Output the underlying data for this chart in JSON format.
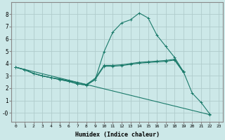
{
  "background_color": "#cce8e8",
  "grid_color": "#b0cccc",
  "line_color": "#1a7a6a",
  "xlabel": "Humidex (Indice chaleur)",
  "xlim": [
    -0.5,
    23.5
  ],
  "ylim": [
    -0.7,
    9.0
  ],
  "yticks": [
    0,
    1,
    2,
    3,
    4,
    5,
    6,
    7,
    8
  ],
  "ytick_labels": [
    "-0",
    "1",
    "2",
    "3",
    "4",
    "5",
    "6",
    "7",
    "8"
  ],
  "xticks": [
    0,
    1,
    2,
    3,
    4,
    5,
    6,
    7,
    8,
    9,
    10,
    11,
    12,
    13,
    14,
    15,
    16,
    17,
    18,
    19,
    20,
    21,
    22,
    23
  ],
  "series": [
    {
      "x": [
        0,
        1,
        2,
        3,
        4,
        5,
        6,
        7,
        8,
        9,
        10,
        11,
        12,
        13,
        14,
        15,
        16,
        17,
        18,
        19
      ],
      "y": [
        3.7,
        3.5,
        3.2,
        3.0,
        2.85,
        2.75,
        2.6,
        2.45,
        2.3,
        2.8,
        3.85,
        3.85,
        3.9,
        4.0,
        4.1,
        4.15,
        4.2,
        4.25,
        4.35,
        3.35
      ]
    },
    {
      "x": [
        0,
        1,
        2,
        3,
        4,
        5,
        6,
        7,
        8,
        9,
        10,
        11,
        12,
        13,
        14,
        15,
        16,
        17,
        18,
        19
      ],
      "y": [
        3.7,
        3.5,
        3.2,
        3.0,
        2.85,
        2.7,
        2.55,
        2.35,
        2.25,
        2.7,
        3.78,
        3.78,
        3.83,
        3.93,
        4.03,
        4.08,
        4.13,
        4.18,
        4.28,
        3.28
      ]
    },
    {
      "x": [
        0,
        1,
        2,
        3,
        4,
        5,
        6,
        7,
        8,
        9,
        10,
        11,
        12,
        13,
        14,
        15,
        16,
        17,
        18,
        19,
        20,
        21,
        22
      ],
      "y": [
        3.7,
        3.5,
        3.2,
        3.0,
        2.85,
        2.7,
        2.55,
        2.35,
        2.25,
        2.7,
        4.95,
        6.55,
        7.3,
        7.55,
        8.1,
        7.7,
        6.3,
        5.4,
        4.5,
        3.35,
        1.6,
        0.85,
        -0.1
      ]
    },
    {
      "x": [
        0,
        22
      ],
      "y": [
        3.7,
        -0.15
      ]
    }
  ]
}
